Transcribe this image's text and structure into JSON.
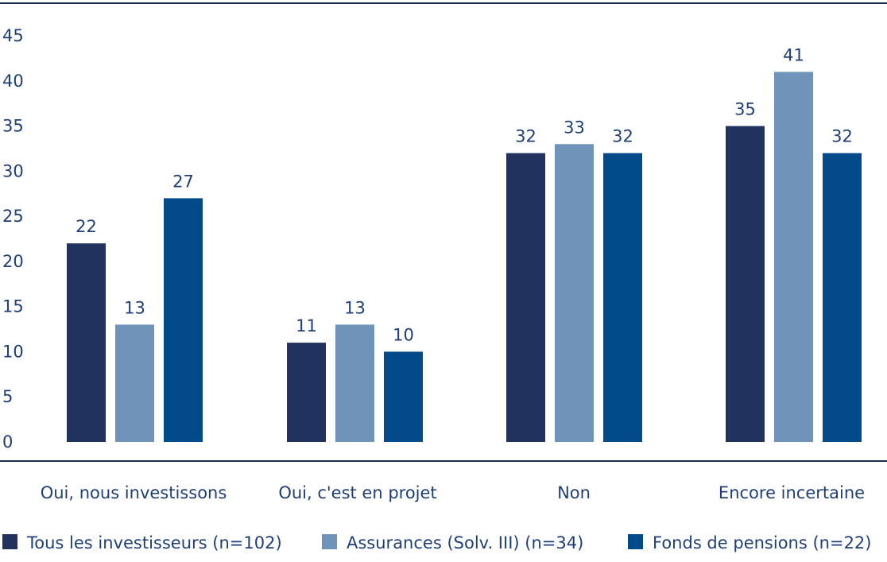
{
  "chart_data": {
    "type": "bar",
    "categories": [
      "Oui, nous investissons",
      "Oui, c'est en projet",
      "Non",
      "Encore incertaine"
    ],
    "series": [
      {
        "name": "Tous les investisseurs (n=102)",
        "values": [
          22,
          11,
          32,
          35
        ],
        "color": "#21325e"
      },
      {
        "name": "Assurances (Solv. III) (n=34)",
        "values": [
          13,
          13,
          33,
          41
        ],
        "color": "#7093ba"
      },
      {
        "name": "Fonds de pensions (n=22)",
        "values": [
          27,
          10,
          32,
          32
        ],
        "color": "#024a8a"
      }
    ],
    "ylim": [
      0,
      45
    ],
    "yticks": [
      0,
      5,
      10,
      15,
      20,
      25,
      30,
      35,
      40,
      45
    ],
    "grid": false,
    "legend_position": "bottom",
    "colors": {
      "text": "#1f3f78",
      "rule": "#1d2d4f"
    }
  }
}
